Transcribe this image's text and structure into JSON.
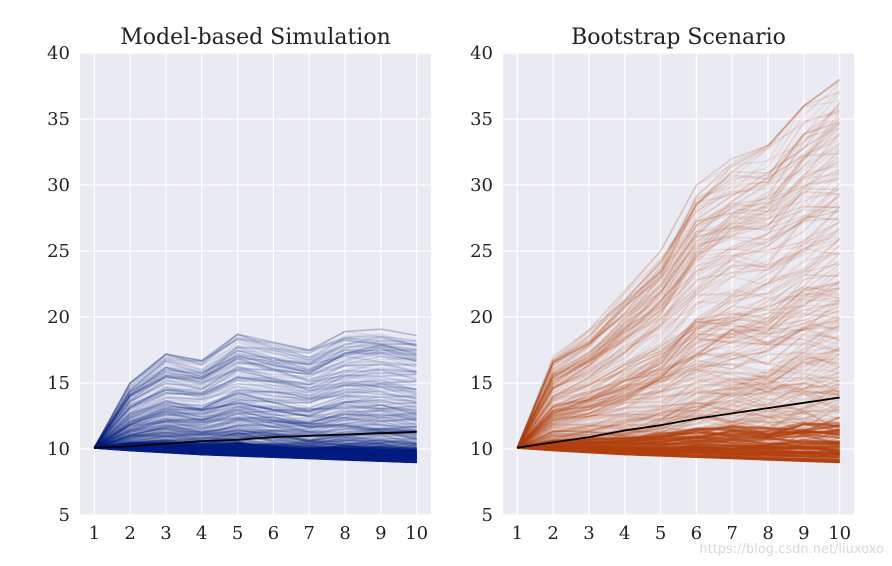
{
  "chart_data": [
    {
      "type": "line",
      "title": "Model-based Simulation",
      "xlabel": "",
      "ylabel": "",
      "x": [
        1,
        2,
        3,
        4,
        5,
        6,
        7,
        8,
        9,
        10
      ],
      "xlim": [
        0.6,
        10.4
      ],
      "ylim": [
        5,
        40
      ],
      "yticks": [
        5,
        10,
        15,
        20,
        25,
        30,
        35,
        40
      ],
      "grid": true,
      "path_color": "#001c7f",
      "mean_color": "#000000",
      "series": [
        {
          "name": "mean",
          "values": [
            10.1,
            10.2,
            10.4,
            10.6,
            10.7,
            10.9,
            11.0,
            11.1,
            11.2,
            11.3
          ]
        },
        {
          "name": "envelope-max",
          "values": [
            10.1,
            15.0,
            17.2,
            16.7,
            18.7,
            18.1,
            17.5,
            18.9,
            19.1,
            18.6
          ]
        },
        {
          "name": "envelope-min",
          "values": [
            10.1,
            9.9,
            9.75,
            9.6,
            9.5,
            9.4,
            9.3,
            9.2,
            9.1,
            9.0
          ]
        }
      ]
    },
    {
      "type": "line",
      "title": "Bootstrap Scenario",
      "xlabel": "",
      "ylabel": "",
      "x": [
        1,
        2,
        3,
        4,
        5,
        6,
        7,
        8,
        9,
        10
      ],
      "xlim": [
        0.6,
        10.4
      ],
      "ylim": [
        5,
        40
      ],
      "yticks": [
        5,
        10,
        15,
        20,
        25,
        30,
        35,
        40
      ],
      "grid": true,
      "path_color": "#b1400d",
      "mean_color": "#000000",
      "series": [
        {
          "name": "mean",
          "values": [
            10.1,
            10.5,
            10.9,
            11.4,
            11.8,
            12.3,
            12.7,
            13.1,
            13.5,
            13.9
          ]
        },
        {
          "name": "envelope-max",
          "values": [
            10.1,
            17.0,
            19.0,
            22.0,
            25.0,
            30.0,
            32.0,
            33.0,
            36.0,
            38.0
          ]
        },
        {
          "name": "envelope-min",
          "values": [
            10.1,
            9.9,
            9.75,
            9.6,
            9.5,
            9.4,
            9.3,
            9.2,
            9.1,
            9.0
          ]
        }
      ]
    }
  ],
  "watermark": "https://blog.csdn.net/liuxoxo"
}
